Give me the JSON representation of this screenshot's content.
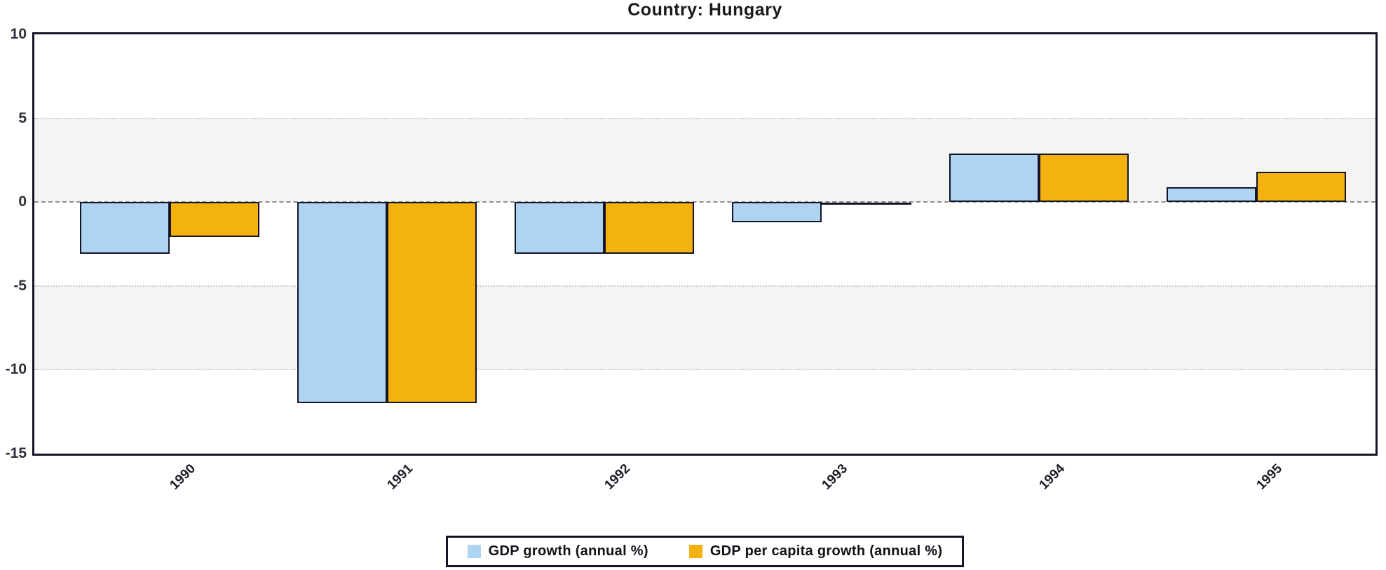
{
  "page": {
    "title": "Country: Hungary"
  },
  "chart_data": {
    "type": "bar",
    "title": "Country: Hungary",
    "categories": [
      "1990",
      "1991",
      "1992",
      "1993",
      "1994",
      "1995"
    ],
    "series": [
      {
        "name": "GDP growth (annual %)",
        "color": "#AED4F2",
        "values": [
          -3.1,
          -12.0,
          -3.1,
          -1.2,
          2.9,
          0.9
        ]
      },
      {
        "name": "GDP per capita growth (annual %)",
        "color": "#F3B20E",
        "values": [
          -2.1,
          -12.0,
          -3.1,
          0.0,
          2.9,
          1.8
        ]
      }
    ],
    "xlabel": "",
    "ylabel": "",
    "ylim": [
      -15,
      10
    ],
    "yticks": [
      10,
      5,
      0,
      -5,
      -10,
      -15
    ],
    "grid_dotted_at": [
      5,
      -5,
      -10
    ],
    "zero_line": true,
    "gray_plot_bands": [
      [
        5,
        0
      ],
      [
        -5,
        -10
      ]
    ],
    "legend_position": "bottom",
    "bar_border_color": "#14142b"
  }
}
